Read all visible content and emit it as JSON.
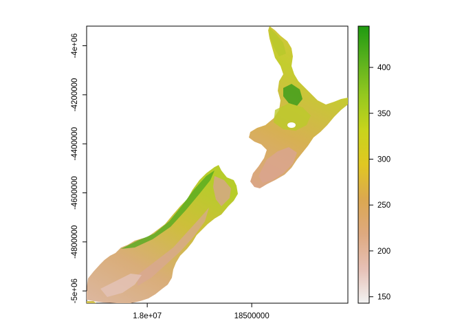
{
  "map": {
    "x_axis": {
      "ticks": [
        {
          "value": 18000000,
          "label": "1.8e+07"
        },
        {
          "value": 18500000,
          "label": "18500000"
        }
      ]
    },
    "y_axis": {
      "ticks": [
        {
          "value": -4000000,
          "label": "-4e+06"
        },
        {
          "value": -4200000,
          "label": "-4200000"
        },
        {
          "value": -4400000,
          "label": "-4400000"
        },
        {
          "value": -4600000,
          "label": "-4600000"
        },
        {
          "value": -4800000,
          "label": "-4800000"
        },
        {
          "value": -5000000,
          "label": "-5e+06"
        }
      ]
    },
    "extent": {
      "xmin": 17710000,
      "xmax": 18960000,
      "ymin": -5050000,
      "ymax": -3920000
    },
    "layer": "New Zealand raster (North Island and South Island)",
    "colors": {
      "land_low": "#e3c9a6",
      "land_mid": "#cfc43a",
      "land_high": "#2f9d1a"
    }
  },
  "legend": {
    "min": 143,
    "max": 445,
    "ticks": [
      {
        "value": 150,
        "label": "150"
      },
      {
        "value": 200,
        "label": "200"
      },
      {
        "value": 250,
        "label": "250"
      },
      {
        "value": 300,
        "label": "300"
      },
      {
        "value": 350,
        "label": "350"
      },
      {
        "value": 400,
        "label": "400"
      }
    ],
    "stops": [
      "#f2f2f2",
      "#e6c0b5",
      "#dea97f",
      "#dba850",
      "#e0c722",
      "#c8d41c",
      "#95c81f",
      "#5bb11e",
      "#1f9a10"
    ]
  }
}
